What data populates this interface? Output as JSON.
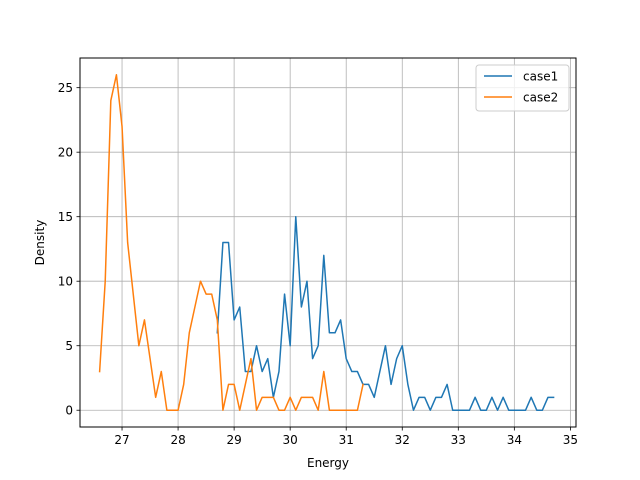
{
  "chart_data": {
    "type": "line",
    "title": "",
    "xlabel": "Energy",
    "ylabel": "Density",
    "xlim": [
      26.25,
      35.1
    ],
    "ylim": [
      -1.3,
      27.3
    ],
    "xticks": [
      27,
      28,
      29,
      30,
      31,
      32,
      33,
      34,
      35
    ],
    "yticks": [
      0,
      5,
      10,
      15,
      20,
      25
    ],
    "grid": true,
    "legend_position": "top-right",
    "series": [
      {
        "name": "case1",
        "color": "#1f77b4",
        "x": [
          28.7,
          28.8,
          28.9,
          29.0,
          29.1,
          29.2,
          29.3,
          29.4,
          29.5,
          29.6,
          29.7,
          29.8,
          29.9,
          30.0,
          30.1,
          30.2,
          30.3,
          30.4,
          30.5,
          30.6,
          30.7,
          30.8,
          30.9,
          31.0,
          31.1,
          31.2,
          31.3,
          31.4,
          31.5,
          31.6,
          31.7,
          31.8,
          31.9,
          32.0,
          32.1,
          32.2,
          32.3,
          32.4,
          32.5,
          32.6,
          32.7,
          32.8,
          32.9,
          33.0,
          33.1,
          33.2,
          33.3,
          33.4,
          33.5,
          33.6,
          33.7,
          33.8,
          33.9,
          34.0,
          34.1,
          34.2,
          34.3,
          34.4,
          34.5,
          34.6,
          34.7
        ],
        "y": [
          6,
          13,
          13,
          7,
          8,
          3,
          3,
          5,
          3,
          4,
          1,
          3,
          9,
          5,
          15,
          8,
          10,
          4,
          5,
          12,
          6,
          6,
          7,
          4,
          3,
          3,
          2,
          2,
          1,
          3,
          5,
          2,
          4,
          5,
          2,
          0,
          1,
          1,
          0,
          1,
          1,
          2,
          0,
          0,
          0,
          0,
          1,
          0,
          0,
          1,
          0,
          1,
          0,
          0,
          0,
          0,
          1,
          0,
          0,
          1,
          1
        ]
      },
      {
        "name": "case2",
        "color": "#ff7f0e",
        "x": [
          26.6,
          26.7,
          26.8,
          26.9,
          27.0,
          27.1,
          27.2,
          27.3,
          27.4,
          27.5,
          27.6,
          27.7,
          27.8,
          27.9,
          28.0,
          28.1,
          28.2,
          28.3,
          28.4,
          28.5,
          28.6,
          28.7,
          28.8,
          28.9,
          29.0,
          29.1,
          29.2,
          29.3,
          29.4,
          29.5,
          29.6,
          29.7,
          29.8,
          29.9,
          30.0,
          30.1,
          30.2,
          30.3,
          30.4,
          30.5,
          30.6,
          30.7,
          30.8,
          30.9,
          31.0,
          31.1,
          31.2,
          31.3
        ],
        "y": [
          3,
          10,
          24,
          26,
          22,
          13,
          9,
          5,
          7,
          4,
          1,
          3,
          0,
          0,
          0,
          2,
          6,
          8,
          10,
          9,
          9,
          7,
          0,
          2,
          2,
          0,
          2,
          4,
          0,
          1,
          1,
          1,
          0,
          0,
          1,
          0,
          1,
          1,
          1,
          0,
          3,
          0,
          0,
          0,
          0,
          0,
          0,
          2
        ]
      }
    ]
  }
}
